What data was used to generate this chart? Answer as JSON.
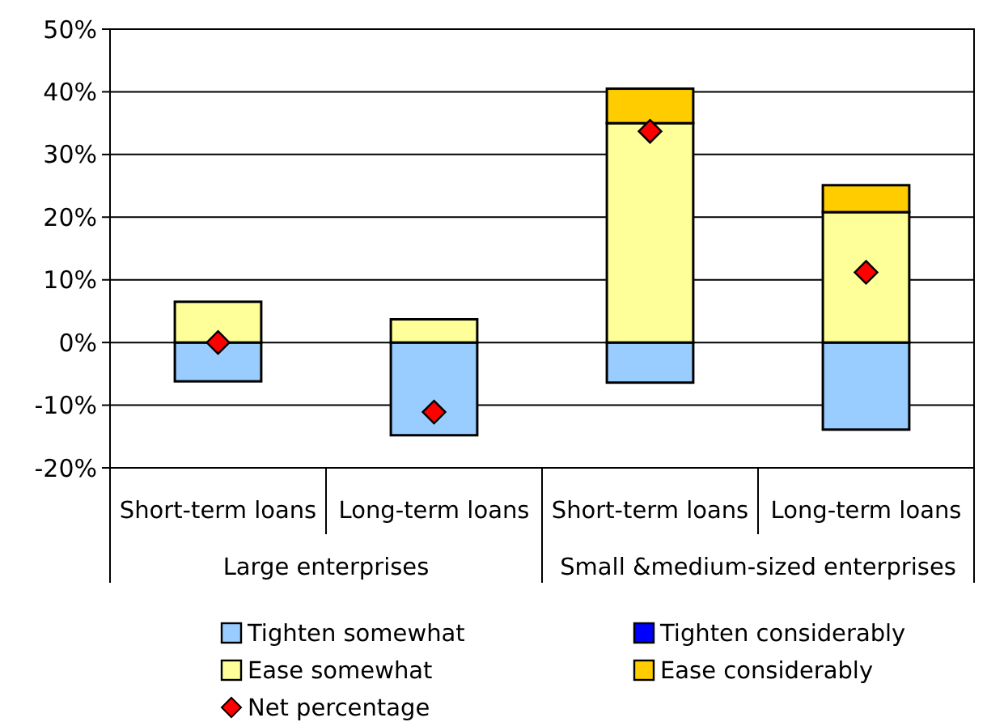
{
  "chart_data": {
    "type": "bar",
    "stacked": true,
    "categories": [
      "Short-term loans",
      "Long-term loans",
      "Short-term loans",
      "Long-term loans"
    ],
    "annotations": [
      "Large enterprises",
      "Small &medium-sized enterprises"
    ],
    "series": [
      {
        "name": "Tighten somewhat",
        "color": "#99ccff",
        "values": [
          -6.2,
          -14.8,
          -6.4,
          -13.9
        ]
      },
      {
        "name": "Tighten considerably",
        "color": "#0000ff",
        "values": [
          0,
          0,
          0,
          0
        ]
      },
      {
        "name": "Ease somewhat",
        "color": "#ffff99",
        "values": [
          6.5,
          3.7,
          35.0,
          20.8
        ]
      },
      {
        "name": "Ease considerably",
        "color": "#ffcc00",
        "values": [
          0,
          0,
          5.5,
          4.3
        ]
      },
      {
        "name": "Net percentage",
        "color": "#ff0000",
        "type": "scatter",
        "marker": "diamond",
        "values": [
          0,
          -11.1,
          33.7,
          11.2
        ]
      }
    ],
    "ylim": [
      -20,
      50
    ],
    "yticks": [
      {
        "value": -20,
        "label": "-20%"
      },
      {
        "value": -10,
        "label": "-10%"
      },
      {
        "value": 0,
        "label": "0%"
      },
      {
        "value": 10,
        "label": "10%"
      },
      {
        "value": 20,
        "label": "20%"
      },
      {
        "value": 30,
        "label": "30%"
      },
      {
        "value": 40,
        "label": "40%"
      },
      {
        "value": 50,
        "label": "50%"
      }
    ],
    "grid": "y",
    "legend": "bottom"
  }
}
